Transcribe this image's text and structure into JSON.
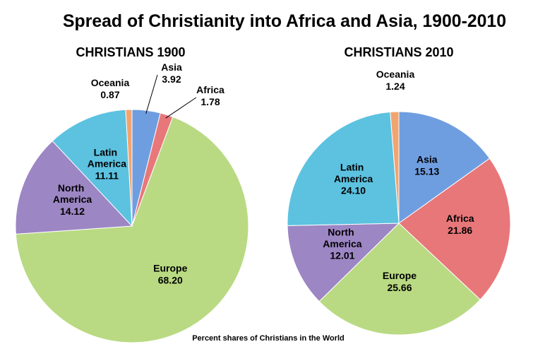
{
  "title": "Spread of Christianity into Africa and Asia, 1900-2010",
  "note": "Percent shares of Christians in the World",
  "chart_data": [
    {
      "type": "pie",
      "title": "CHRISTIANS 1900",
      "categories": [
        "Oceania",
        "Asia",
        "Africa",
        "Europe",
        "North America",
        "Latin America"
      ],
      "values": [
        0.87,
        3.92,
        1.78,
        68.2,
        14.12,
        11.11
      ],
      "value_labels": [
        "0.87",
        "3.92",
        "1.78",
        "68.20",
        "14.12",
        "11.11"
      ],
      "colors": [
        "#f2a46e",
        "#6f9ee0",
        "#e8777a",
        "#b9da82",
        "#9d86c4",
        "#5cc2e0"
      ]
    },
    {
      "type": "pie",
      "title": "CHRISTIANS 2010",
      "categories": [
        "Oceania",
        "Asia",
        "Africa",
        "Europe",
        "North America",
        "Latin America"
      ],
      "values": [
        1.24,
        15.13,
        21.86,
        25.66,
        12.01,
        24.1
      ],
      "value_labels": [
        "1.24",
        "15.13",
        "21.86",
        "25.66",
        "12.01",
        "24.10"
      ],
      "colors": [
        "#f2a46e",
        "#6f9ee0",
        "#e8777a",
        "#b9da82",
        "#9d86c4",
        "#5cc2e0"
      ]
    }
  ]
}
